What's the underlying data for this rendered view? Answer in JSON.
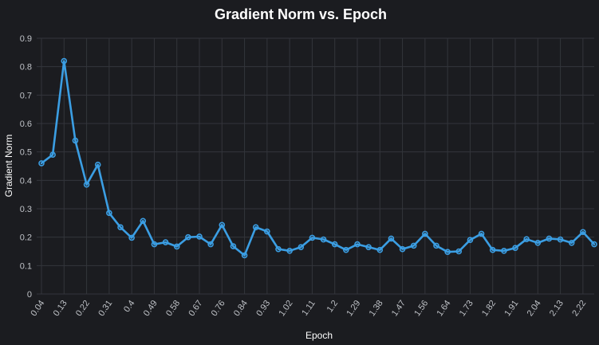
{
  "chart_data": {
    "type": "line",
    "title": "Gradient Norm vs. Epoch",
    "xlabel": "Epoch",
    "ylabel": "Gradient Norm",
    "ylim": [
      0,
      0.9
    ],
    "yticks": [
      "0",
      "0.1",
      "0.2",
      "0.3",
      "0.4",
      "0.5",
      "0.6",
      "0.7",
      "0.8",
      "0.9"
    ],
    "xticks": [
      "0.04",
      "0.13",
      "0.22",
      "0.31",
      "0.4",
      "0.49",
      "0.58",
      "0.67",
      "0.76",
      "0.84",
      "0.93",
      "1.02",
      "1.11",
      "1.2",
      "1.29",
      "1.38",
      "1.47",
      "1.56",
      "1.64",
      "1.73",
      "1.82",
      "1.91",
      "2.04",
      "2.13",
      "2.22"
    ],
    "grid": true,
    "legend": "none",
    "colors": {
      "line": "#3b9ee3",
      "background": "#1b1c20",
      "grid": "#33353b",
      "text": "#bfc2c7",
      "title": "#ffffff"
    },
    "series": [
      {
        "values": [
          0.46,
          0.49,
          0.82,
          0.54,
          0.385,
          0.455,
          0.285,
          0.235,
          0.198,
          0.257,
          0.175,
          0.182,
          0.167,
          0.2,
          0.202,
          0.175,
          0.243,
          0.168,
          0.136,
          0.235,
          0.22,
          0.158,
          0.152,
          0.165,
          0.198,
          0.192,
          0.175,
          0.155,
          0.175,
          0.165,
          0.155,
          0.195,
          0.158,
          0.17,
          0.212,
          0.17,
          0.148,
          0.15,
          0.19,
          0.212,
          0.155,
          0.152,
          0.162,
          0.193,
          0.18,
          0.195,
          0.192,
          0.18,
          0.218,
          0.175
        ]
      }
    ]
  }
}
